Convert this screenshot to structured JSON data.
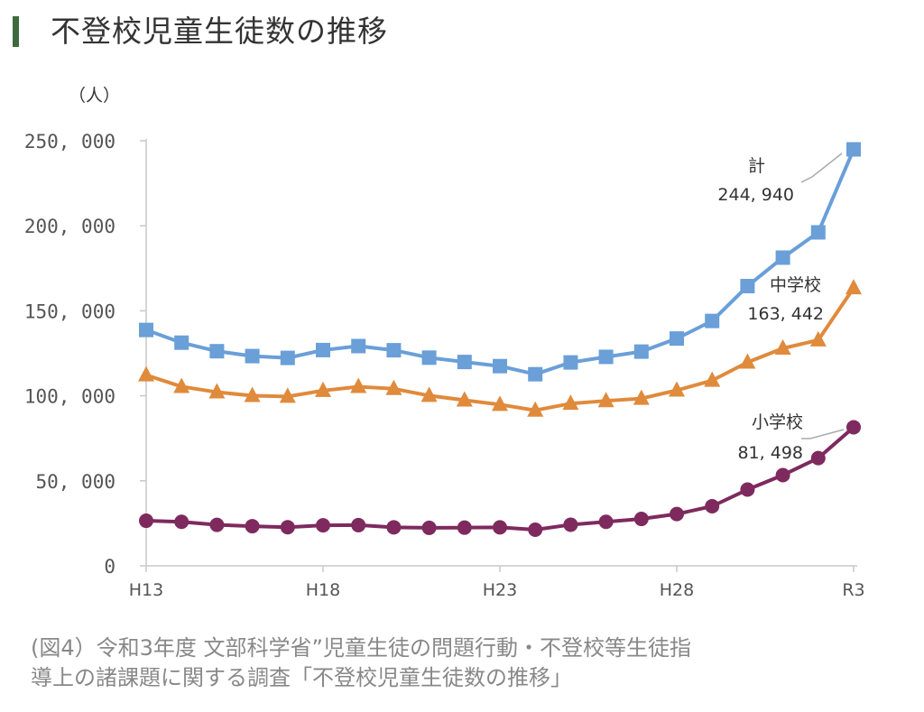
{
  "page": {
    "title": "不登校児童生徒数の推移",
    "caption_line1": "(図4）令和3年度 文部科学省”児童生徒の問題行動・不登校等生徒指",
    "caption_line2": "導上の諸課題に関する調査「不登校児童生徒数の推移」"
  },
  "chart_data": {
    "type": "line",
    "title": "不登校児童生徒数の推移",
    "ylabel": "（人）",
    "xlabel": "",
    "ylim": [
      0,
      250000
    ],
    "yticks": [
      0,
      50000,
      100000,
      150000,
      200000,
      250000
    ],
    "ytick_labels": [
      "0",
      "50, 000",
      "100, 000",
      "150, 000",
      "200, 000",
      "250, 000"
    ],
    "x": [
      "H13",
      "H14",
      "H15",
      "H16",
      "H17",
      "H18",
      "H19",
      "H20",
      "H21",
      "H22",
      "H23",
      "H24",
      "H25",
      "H26",
      "H27",
      "H28",
      "H29",
      "H30",
      "R1",
      "R2",
      "R3"
    ],
    "xtick_labels": [
      {
        "index": 0,
        "label": "H13"
      },
      {
        "index": 5,
        "label": "H18"
      },
      {
        "index": 10,
        "label": "H23"
      },
      {
        "index": 15,
        "label": "H28"
      },
      {
        "index": 20,
        "label": "R3"
      }
    ],
    "grid": false,
    "series": [
      {
        "name": "計",
        "color": "#6a9fd8",
        "marker": "square",
        "values": [
          138722,
          131252,
          126226,
          123358,
          122287,
          126894,
          129255,
          126805,
          122432,
          119891,
          117458,
          112689,
          119617,
          122897,
          125991,
          133683,
          144031,
          164528,
          181272,
          196127,
          244940
        ]
      },
      {
        "name": "中学校",
        "color": "#e08a3c",
        "marker": "triangle",
        "values": [
          112211,
          105383,
          102149,
          100040,
          99578,
          103069,
          105328,
          104153,
          100105,
          97428,
          94836,
          91446,
          95442,
          97033,
          98408,
          103235,
          108999,
          119687,
          127922,
          132777,
          163442
        ]
      },
      {
        "name": "小学校",
        "color": "#7e2a5e",
        "marker": "circle",
        "values": [
          26511,
          25869,
          24077,
          23318,
          22709,
          23825,
          23927,
          22652,
          22327,
          22463,
          22622,
          21243,
          24175,
          25864,
          27583,
          30448,
          35032,
          44841,
          53350,
          63350,
          81498
        ]
      }
    ],
    "annotations": [
      {
        "series": "計",
        "label": "計",
        "value_text": "244, 940"
      },
      {
        "series": "中学校",
        "label": "中学校",
        "value_text": "163, 442"
      },
      {
        "series": "小学校",
        "label": "小学校",
        "value_text": "81, 498"
      }
    ]
  }
}
